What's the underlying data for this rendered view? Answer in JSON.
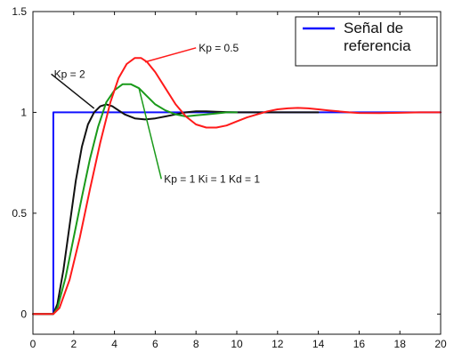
{
  "chart_data": {
    "type": "line",
    "title": "",
    "xlabel": "",
    "ylabel": "",
    "xlim": [
      0,
      20
    ],
    "ylim": [
      -0.1,
      1.5
    ],
    "xticks": [
      0,
      2,
      4,
      6,
      8,
      10,
      12,
      14,
      16,
      18,
      20
    ],
    "yticks": [
      0,
      0.5,
      1,
      1.5
    ],
    "grid": false,
    "legend": {
      "placement": "top-right",
      "entries": [
        {
          "label_lines": [
            "Señal de",
            "referencia"
          ],
          "color": "#1010ff"
        }
      ]
    },
    "series": [
      {
        "name": "Señal de referencia",
        "color": "#1010ff",
        "x": [
          0,
          1,
          1,
          20
        ],
        "y": [
          0,
          0,
          1,
          1
        ]
      },
      {
        "name": "Kp = 2",
        "color": "#111111",
        "x": [
          0,
          1,
          1.2,
          1.5,
          1.8,
          2.1,
          2.4,
          2.7,
          3.0,
          3.3,
          3.6,
          3.9,
          4.2,
          4.5,
          5.0,
          5.5,
          6.0,
          6.5,
          7.0,
          7.5,
          8.0,
          8.5,
          9.0,
          10.0,
          11.0,
          12.0,
          13.0,
          14.0
        ],
        "y": [
          0,
          0,
          0.05,
          0.22,
          0.44,
          0.66,
          0.83,
          0.94,
          1.0,
          1.03,
          1.04,
          1.03,
          1.01,
          0.99,
          0.97,
          0.965,
          0.97,
          0.98,
          0.99,
          1.0,
          1.005,
          1.005,
          1.003,
          1.0,
          1.0,
          1.0,
          1.0,
          1.0
        ]
      },
      {
        "name": "Kp = 1  Ki = 1  Kd = 1",
        "color": "#1a9a1a",
        "x": [
          0,
          1,
          1.2,
          1.6,
          2.0,
          2.4,
          2.8,
          3.2,
          3.6,
          4.0,
          4.4,
          4.8,
          5.2,
          5.6,
          6.0,
          6.5,
          7.0,
          7.5,
          8.0,
          8.5,
          9.0,
          9.5,
          10.0
        ],
        "y": [
          0,
          0,
          0.03,
          0.18,
          0.38,
          0.58,
          0.77,
          0.93,
          1.05,
          1.11,
          1.14,
          1.14,
          1.12,
          1.08,
          1.04,
          1.01,
          0.99,
          0.98,
          0.985,
          0.99,
          0.995,
          1.0,
          1.0
        ]
      },
      {
        "name": "Kp = 0.5",
        "color": "#ff1a1a",
        "x": [
          0,
          1,
          1.3,
          1.8,
          2.3,
          2.8,
          3.3,
          3.8,
          4.2,
          4.6,
          5.0,
          5.3,
          5.6,
          6.0,
          6.5,
          7.0,
          7.5,
          8.0,
          8.5,
          9.0,
          9.5,
          10.0,
          10.5,
          11.0,
          11.5,
          12.0,
          12.5,
          13.0,
          13.5,
          14.0,
          14.5,
          15.0,
          15.5,
          16.0,
          17.0,
          18.0,
          19.0,
          20.0
        ],
        "y": [
          0,
          0,
          0.03,
          0.17,
          0.38,
          0.62,
          0.85,
          1.05,
          1.17,
          1.24,
          1.27,
          1.27,
          1.25,
          1.2,
          1.12,
          1.04,
          0.98,
          0.94,
          0.925,
          0.925,
          0.935,
          0.955,
          0.975,
          0.99,
          1.005,
          1.015,
          1.02,
          1.022,
          1.02,
          1.015,
          1.01,
          1.005,
          1.0,
          0.997,
          0.996,
          0.998,
          1.0,
          1.0
        ]
      }
    ],
    "annotations": [
      {
        "text": "Kp = 0.5",
        "text_x": 8.0,
        "text_y": 1.32,
        "target_x": 5.5,
        "target_y": 1.25,
        "color": "#ff1a1a"
      },
      {
        "text": "Kp = 2",
        "text_x": 0.9,
        "text_y": 1.19,
        "target_x": 3.0,
        "target_y": 1.02,
        "color": "#111111"
      },
      {
        "text": "Kp = 1  Ki = 1  Kd = 1",
        "text_x": 6.3,
        "text_y": 0.67,
        "target_x": 5.2,
        "target_y": 1.12,
        "color": "#1a9a1a"
      }
    ]
  }
}
